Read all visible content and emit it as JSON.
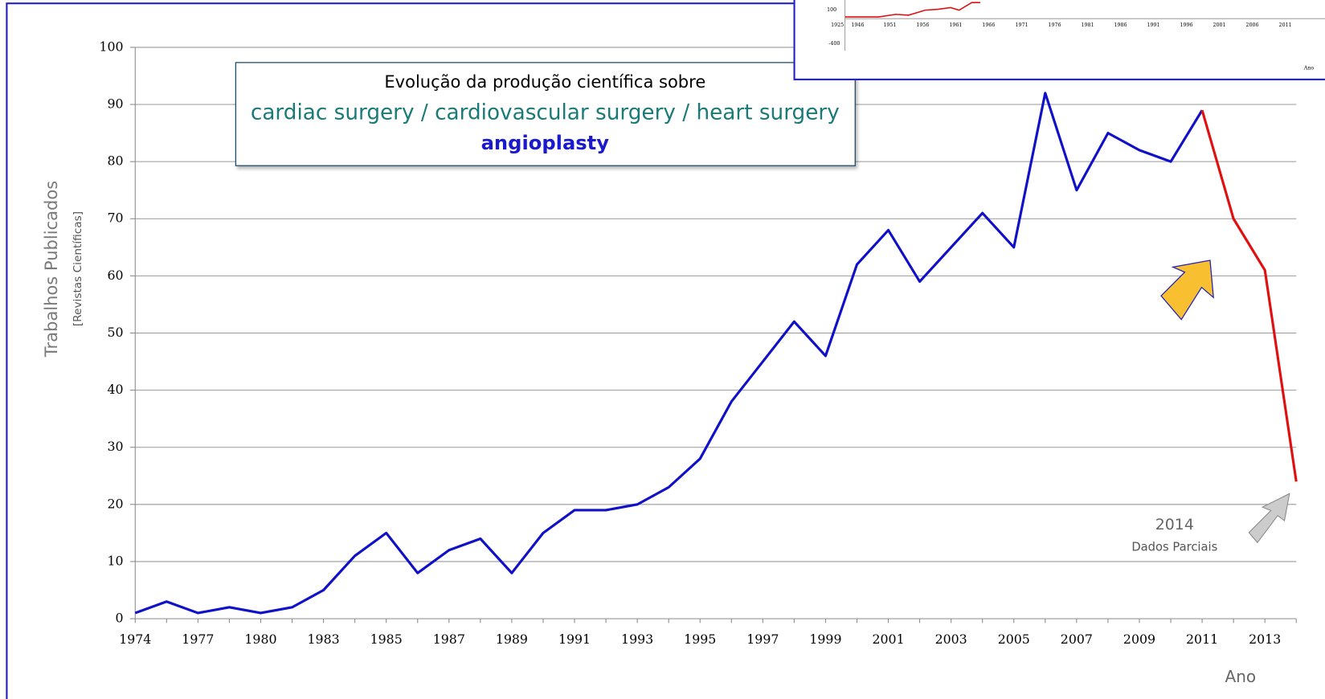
{
  "chart_data": {
    "type": "line",
    "title": "Evolução da produção científica sobre",
    "subtitle": "cardiac surgery / cardiovascular surgery / heart surgery",
    "subtitle2": "angioplasty",
    "ylabel": "Trabalhos Publicados",
    "ylabel_sub": "[Revistas Científicas]",
    "xlabel": "Ano",
    "annotations": [
      "2014",
      "Dados Parciais"
    ],
    "categories": [
      "1974",
      null,
      "1977",
      null,
      "1980",
      null,
      "1983",
      null,
      "1985",
      null,
      "1987",
      null,
      "1989",
      null,
      "1991",
      null,
      "1993",
      null,
      "1995",
      null,
      "1997",
      null,
      "1999",
      null,
      "2001",
      null,
      "2003",
      null,
      "2005",
      null,
      "2007",
      null,
      "2009",
      null,
      "2011",
      null,
      "2013",
      null
    ],
    "series": [
      {
        "color": "#1010c8",
        "values": [
          1,
          3,
          1,
          2,
          1,
          2,
          5,
          11,
          15,
          8,
          12,
          14,
          8,
          15,
          19,
          19,
          20,
          23,
          28,
          38,
          45,
          52,
          46,
          62,
          68,
          59,
          65,
          71,
          65,
          92,
          75,
          85,
          82,
          80,
          89,
          null,
          null,
          null
        ]
      },
      {
        "color": "#e01010",
        "values": [
          null,
          null,
          null,
          null,
          null,
          null,
          null,
          null,
          null,
          null,
          null,
          null,
          null,
          null,
          null,
          null,
          null,
          null,
          null,
          null,
          null,
          null,
          null,
          null,
          null,
          null,
          null,
          null,
          null,
          null,
          null,
          null,
          null,
          null,
          89,
          70,
          61,
          24
        ]
      }
    ],
    "ylim": [
      0,
      100
    ],
    "yticks": [
      0,
      10,
      20,
      30,
      40,
      50,
      60,
      70,
      80,
      90,
      100
    ],
    "grid": true
  },
  "inset": {
    "yticks": [
      "100",
      "-400"
    ],
    "xticks": [
      "1925",
      "1946",
      "1951",
      "1956",
      "1961",
      "1966",
      "1971",
      "1976",
      "1981",
      "1986",
      "1991",
      "1996",
      "2001",
      "2006",
      "2011"
    ],
    "xlabel": "Ano"
  }
}
